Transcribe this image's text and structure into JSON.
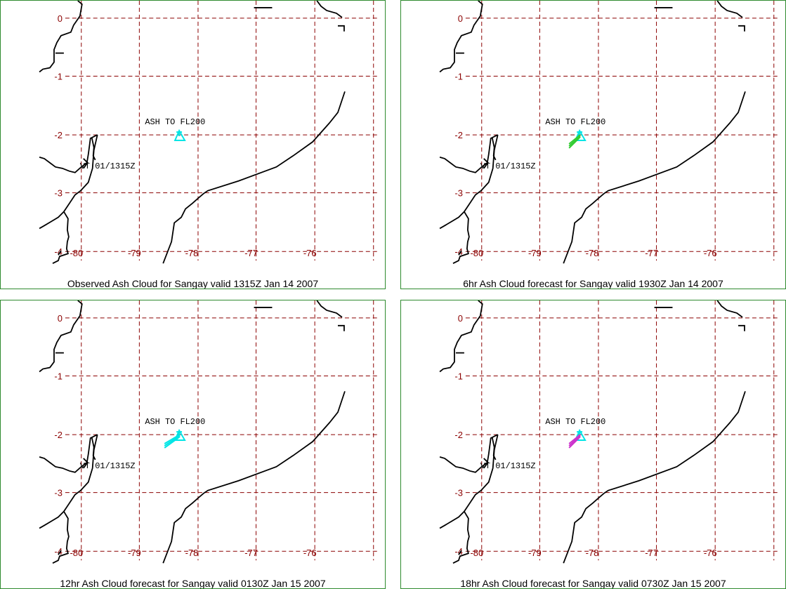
{
  "map": {
    "lat_ticks": [
      "0",
      "-1",
      "-2",
      "-3",
      "-4"
    ],
    "lon_ticks": [
      "-80",
      "-79",
      "-78",
      "-77",
      "-76"
    ],
    "grid_color": "#8b0000",
    "coast_color": "#000000",
    "border_color": "#2e8b2e"
  },
  "panels": [
    {
      "caption": "Observed Ash Cloud for Sangay valid 1315Z Jan 14 2007",
      "ash_label": "ASH TO FL200",
      "obs_label": "VT 01/1315Z",
      "plume_color": "#00e5e5",
      "forecast_color": ""
    },
    {
      "caption": "6hr Ash Cloud forecast for Sangay valid 1930Z Jan 14 2007",
      "ash_label": "ASH TO FL200",
      "obs_label": "VT 01/1315Z",
      "plume_color": "#00e5e5",
      "forecast_color": "#33cc33"
    },
    {
      "caption": "12hr Ash Cloud forecast for Sangay valid 0130Z Jan 15 2007",
      "ash_label": "ASH TO FL200",
      "obs_label": "VT 01/1315Z",
      "plume_color": "#00e5e5",
      "forecast_color": "#00e5e5"
    },
    {
      "caption": "18hr Ash Cloud forecast for Sangay valid 0730Z Jan 15 2007",
      "ash_label": "ASH TO FL200",
      "obs_label": "VT 01/1315Z",
      "plume_color": "#00e5e5",
      "forecast_color": "#cc33cc"
    }
  ]
}
